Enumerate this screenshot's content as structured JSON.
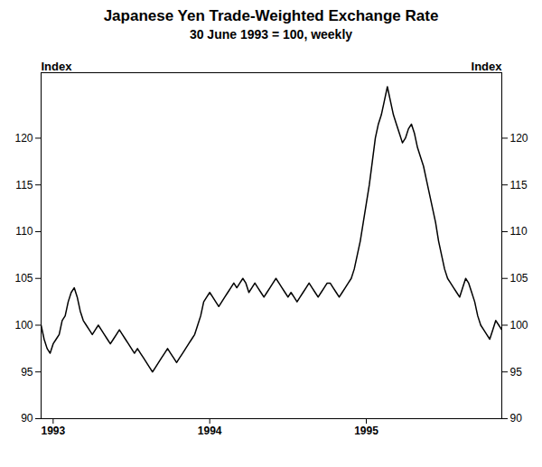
{
  "chart_data": {
    "type": "line",
    "title": "Japanese Yen Trade-Weighted Exchange Rate",
    "subtitle": "30 June 1993 = 100, weekly",
    "ylabel": "Index",
    "y2label": "Index",
    "color": "#000000",
    "grid": false,
    "ylim": [
      90,
      127
    ],
    "yticks": [
      90,
      95,
      100,
      105,
      110,
      115,
      120
    ],
    "categories": [
      null,
      null,
      null,
      null,
      "1993",
      null,
      null,
      null,
      null,
      null,
      null,
      null,
      null,
      null,
      null,
      null,
      null,
      null,
      null,
      null,
      null,
      null,
      null,
      null,
      null,
      null,
      null,
      null,
      null,
      null,
      null,
      null,
      null,
      null,
      null,
      null,
      null,
      null,
      null,
      null,
      null,
      null,
      null,
      null,
      null,
      null,
      null,
      null,
      null,
      null,
      null,
      null,
      null,
      null,
      null,
      null,
      "1994",
      null,
      null,
      null,
      null,
      null,
      null,
      null,
      null,
      null,
      null,
      null,
      null,
      null,
      null,
      null,
      null,
      null,
      null,
      null,
      null,
      null,
      null,
      null,
      null,
      null,
      null,
      null,
      null,
      null,
      null,
      null,
      null,
      null,
      null,
      null,
      null,
      null,
      null,
      null,
      null,
      null,
      null,
      null,
      null,
      null,
      null,
      null,
      null,
      null,
      null,
      null,
      "1995",
      null,
      null,
      null,
      null,
      null,
      null,
      null,
      null,
      null,
      null,
      null,
      null,
      null,
      null,
      null,
      null,
      null,
      null,
      null,
      null,
      null,
      null,
      null,
      null,
      null,
      null,
      null,
      null,
      null,
      null,
      null,
      null,
      null,
      null,
      null,
      null,
      null,
      null,
      null,
      null,
      null,
      null,
      null,
      null,
      null
    ],
    "values": [
      100.0,
      98.5,
      97.5,
      97.0,
      98.0,
      98.5,
      99.0,
      100.5,
      101.0,
      102.5,
      103.5,
      104.0,
      103.0,
      101.5,
      100.5,
      100.0,
      99.5,
      99.0,
      99.5,
      100.0,
      99.5,
      99.0,
      98.5,
      98.0,
      98.5,
      99.0,
      99.5,
      99.0,
      98.5,
      98.0,
      97.5,
      97.0,
      97.5,
      97.0,
      96.5,
      96.0,
      95.5,
      95.0,
      95.5,
      96.0,
      96.5,
      97.0,
      97.5,
      97.0,
      96.5,
      96.0,
      96.5,
      97.0,
      97.5,
      98.0,
      98.5,
      99.0,
      100.0,
      101.0,
      102.5,
      103.0,
      103.5,
      103.0,
      102.5,
      102.0,
      102.5,
      103.0,
      103.5,
      104.0,
      104.5,
      104.0,
      104.5,
      105.0,
      104.5,
      103.5,
      104.0,
      104.5,
      104.0,
      103.5,
      103.0,
      103.5,
      104.0,
      104.5,
      105.0,
      104.5,
      104.0,
      103.5,
      103.0,
      103.5,
      103.0,
      102.5,
      103.0,
      103.5,
      104.0,
      104.5,
      104.0,
      103.5,
      103.0,
      103.5,
      104.0,
      104.5,
      104.5,
      104.0,
      103.5,
      103.0,
      103.5,
      104.0,
      104.5,
      105.0,
      106.0,
      107.5,
      109.0,
      111.0,
      113.0,
      115.0,
      117.5,
      120.0,
      121.5,
      122.5,
      124.0,
      125.5,
      124.0,
      122.5,
      121.5,
      120.5,
      119.5,
      120.0,
      121.0,
      121.5,
      120.5,
      119.0,
      118.0,
      117.0,
      115.5,
      114.0,
      112.5,
      111.0,
      109.0,
      107.5,
      106.0,
      105.0,
      104.5,
      104.0,
      103.5,
      103.0,
      104.0,
      105.0,
      104.5,
      103.5,
      102.5,
      101.0,
      100.0,
      99.5,
      99.0,
      98.5,
      99.5,
      100.5,
      100.0,
      99.5
    ]
  }
}
